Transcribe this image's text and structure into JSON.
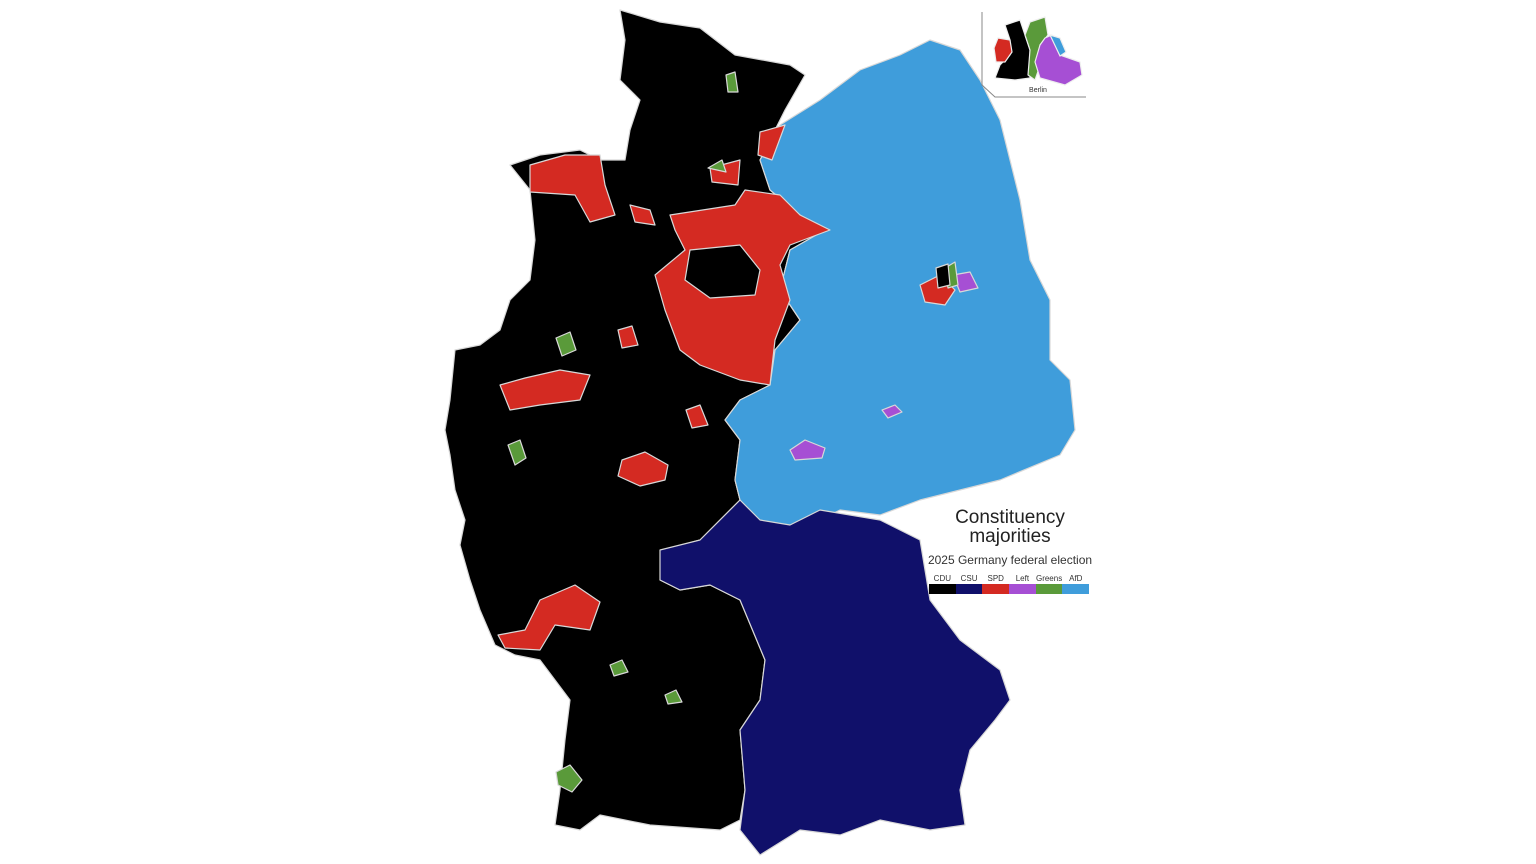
{
  "legend": {
    "title": "Constituency majorities",
    "subtitle": "2025 Germany federal election",
    "entries": [
      {
        "label": "CDU",
        "color": "#000000"
      },
      {
        "label": "CSU",
        "color": "#10106a"
      },
      {
        "label": "SPD",
        "color": "#d42a22"
      },
      {
        "label": "Left",
        "color": "#a64fd4"
      },
      {
        "label": "Greens",
        "color": "#5a9a3a"
      },
      {
        "label": "AfD",
        "color": "#3f9ddb"
      }
    ]
  },
  "inset": {
    "label": "Berlin"
  },
  "regions": [
    {
      "name": "west",
      "party": "CDU"
    },
    {
      "name": "east",
      "party": "AfD"
    },
    {
      "name": "bavaria",
      "party": "CSU"
    },
    {
      "name": "lower-saxony-central",
      "party": "SPD"
    },
    {
      "name": "east-frisia",
      "party": "SPD"
    },
    {
      "name": "ruhr",
      "party": "SPD"
    },
    {
      "name": "hesse-central",
      "party": "SPD"
    },
    {
      "name": "palatinate",
      "party": "SPD"
    },
    {
      "name": "hamburg",
      "party": "SPD"
    },
    {
      "name": "berlin-west",
      "party": "SPD"
    },
    {
      "name": "thuringia-erfurt",
      "party": "Left"
    },
    {
      "name": "leipzig",
      "party": "Left"
    },
    {
      "name": "berlin-east",
      "party": "Left"
    },
    {
      "name": "freiburg",
      "party": "Greens"
    },
    {
      "name": "aachen",
      "party": "Greens"
    }
  ]
}
